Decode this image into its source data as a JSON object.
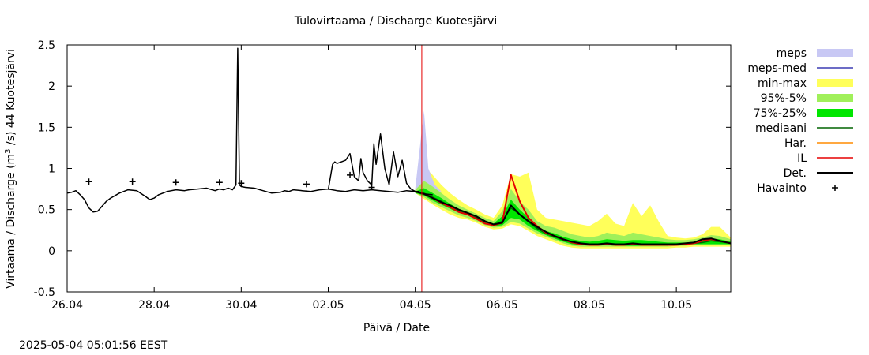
{
  "timestamp": "2025-05-04 05:01:56 EEST",
  "chart_data": {
    "type": "line",
    "title": "Tulovirtaama / Discharge  Kuotesjärvi",
    "xlabel": "Päivä / Date",
    "ylabel_prefix": "Virtaama / Discharge (m",
    "ylabel_sup": "3",
    "ylabel_suffix": " /s)  44 Kuotesjärvi",
    "xlim": [
      0,
      15.25
    ],
    "ylim": [
      -0.5,
      2.5
    ],
    "x_unit": "days since 26.04",
    "yticks": [
      -0.5,
      0,
      0.5,
      1,
      1.5,
      2,
      2.5
    ],
    "ytick_labels": [
      "-0.5",
      "0",
      "0.5",
      "1",
      "1.5",
      "2",
      "2.5"
    ],
    "xticks": [
      0,
      2,
      4,
      6,
      8,
      10,
      12,
      14
    ],
    "xtick_labels": [
      "26.04",
      "28.04",
      "30.04",
      "02.05",
      "04.05",
      "06.05",
      "08.05",
      "10.05"
    ],
    "forecast_start_x": 8.15,
    "legend_position": "right, outside plot",
    "legend": [
      {
        "label": "meps",
        "kind": "box",
        "color": "#c8c8f4"
      },
      {
        "label": "meps-med",
        "kind": "line",
        "color": "#3c3cb4"
      },
      {
        "label": "min-max",
        "kind": "box",
        "color": "#ffff5a"
      },
      {
        "label": "95%-5%",
        "kind": "box",
        "color": "#a0f05a"
      },
      {
        "label": "75%-25%",
        "kind": "box",
        "color": "#00e600"
      },
      {
        "label": "mediaani",
        "kind": "line",
        "color": "#006400"
      },
      {
        "label": "Har.",
        "kind": "line",
        "color": "#ff8c00"
      },
      {
        "label": "IL",
        "kind": "line",
        "color": "#e60000"
      },
      {
        "label": "Det.",
        "kind": "line",
        "color": "#000000"
      },
      {
        "label": "Havainto",
        "kind": "marker",
        "color": "#000000"
      }
    ],
    "series": {
      "observed": {
        "x": [
          0,
          0.1,
          0.2,
          0.3,
          0.4,
          0.5,
          0.6,
          0.7,
          0.8,
          0.9,
          1.0,
          1.2,
          1.4,
          1.6,
          1.8,
          1.9,
          2.0,
          2.1,
          2.2,
          2.3,
          2.5,
          2.7,
          2.8,
          3.0,
          3.2,
          3.4,
          3.5,
          3.6,
          3.7,
          3.8,
          3.88,
          3.92,
          3.96,
          4.0,
          4.1,
          4.3,
          4.5,
          4.7,
          4.9,
          5.0,
          5.1,
          5.2,
          5.4,
          5.6,
          5.8,
          6.0,
          6.2,
          6.4,
          6.6,
          6.8,
          7.0,
          7.2,
          7.4,
          7.6,
          7.8,
          8.0,
          8.1
        ],
        "y": [
          0.7,
          0.71,
          0.73,
          0.68,
          0.62,
          0.52,
          0.47,
          0.48,
          0.54,
          0.6,
          0.64,
          0.7,
          0.74,
          0.73,
          0.66,
          0.62,
          0.64,
          0.68,
          0.7,
          0.72,
          0.74,
          0.73,
          0.74,
          0.75,
          0.76,
          0.73,
          0.75,
          0.74,
          0.76,
          0.74,
          0.8,
          2.46,
          0.8,
          0.78,
          0.77,
          0.76,
          0.73,
          0.7,
          0.71,
          0.73,
          0.72,
          0.74,
          0.73,
          0.72,
          0.74,
          0.75,
          0.73,
          0.72,
          0.74,
          0.73,
          0.74,
          0.73,
          0.72,
          0.71,
          0.73,
          0.72,
          0.72
        ]
      },
      "observed_late": {
        "x": [
          6.0,
          6.1,
          6.15,
          6.2,
          6.3,
          6.4,
          6.5,
          6.6,
          6.7,
          6.75,
          6.8,
          6.9,
          7.0,
          7.05,
          7.1,
          7.2,
          7.3,
          7.4,
          7.5,
          7.55,
          7.6,
          7.7,
          7.8,
          7.9,
          8.0,
          8.1,
          8.2,
          8.4
        ],
        "y": [
          0.74,
          1.05,
          1.08,
          1.06,
          1.08,
          1.1,
          1.18,
          0.9,
          0.85,
          1.12,
          0.95,
          0.85,
          0.8,
          1.3,
          1.05,
          1.42,
          1.0,
          0.8,
          1.2,
          1.05,
          0.9,
          1.1,
          0.82,
          0.75,
          0.72,
          0.7,
          0.69,
          0.68
        ]
      },
      "observations_marker_x": [
        0.5,
        1.5,
        2.5,
        3.5,
        4.0,
        5.5,
        6.5,
        7.0
      ],
      "observations_marker_y": [
        0.84,
        0.84,
        0.83,
        0.83,
        0.82,
        0.81,
        0.92,
        0.77
      ],
      "forecast_x": [
        8.0,
        8.2,
        8.4,
        8.6,
        8.8,
        9.0,
        9.2,
        9.4,
        9.6,
        9.8,
        10.0,
        10.2,
        10.4,
        10.6,
        10.8,
        11.0,
        11.2,
        11.4,
        11.6,
        11.8,
        12.0,
        12.2,
        12.4,
        12.6,
        12.8,
        13.0,
        13.2,
        13.4,
        13.6,
        13.8,
        14.0,
        14.2,
        14.4,
        14.6,
        14.8,
        15.0,
        15.25
      ],
      "min_max_low": [
        0.7,
        0.63,
        0.56,
        0.5,
        0.44,
        0.4,
        0.38,
        0.34,
        0.29,
        0.26,
        0.27,
        0.32,
        0.3,
        0.24,
        0.18,
        0.14,
        0.1,
        0.06,
        0.04,
        0.03,
        0.03,
        0.03,
        0.03,
        0.03,
        0.03,
        0.03,
        0.03,
        0.03,
        0.03,
        0.03,
        0.04,
        0.04,
        0.05,
        0.05,
        0.05,
        0.05,
        0.05
      ],
      "min_max_high": [
        0.76,
        1.02,
        0.92,
        0.8,
        0.7,
        0.62,
        0.55,
        0.5,
        0.44,
        0.4,
        0.55,
        0.93,
        0.9,
        0.95,
        0.5,
        0.4,
        0.38,
        0.36,
        0.34,
        0.32,
        0.3,
        0.36,
        0.45,
        0.33,
        0.3,
        0.58,
        0.42,
        0.55,
        0.35,
        0.18,
        0.16,
        0.15,
        0.16,
        0.2,
        0.29,
        0.29,
        0.16
      ],
      "p95_5_low": [
        0.7,
        0.65,
        0.58,
        0.53,
        0.48,
        0.43,
        0.4,
        0.36,
        0.31,
        0.28,
        0.29,
        0.35,
        0.33,
        0.27,
        0.21,
        0.17,
        0.13,
        0.09,
        0.06,
        0.05,
        0.05,
        0.05,
        0.05,
        0.05,
        0.05,
        0.05,
        0.05,
        0.05,
        0.05,
        0.05,
        0.06,
        0.06,
        0.07,
        0.07,
        0.07,
        0.07,
        0.07
      ],
      "p95_5_high": [
        0.74,
        0.85,
        0.78,
        0.7,
        0.62,
        0.55,
        0.5,
        0.45,
        0.4,
        0.36,
        0.48,
        0.75,
        0.6,
        0.5,
        0.36,
        0.3,
        0.28,
        0.24,
        0.2,
        0.18,
        0.16,
        0.18,
        0.22,
        0.2,
        0.18,
        0.22,
        0.2,
        0.18,
        0.16,
        0.14,
        0.13,
        0.13,
        0.14,
        0.16,
        0.19,
        0.18,
        0.14
      ],
      "p75_25_low": [
        0.7,
        0.67,
        0.61,
        0.56,
        0.51,
        0.46,
        0.43,
        0.38,
        0.33,
        0.3,
        0.31,
        0.4,
        0.38,
        0.3,
        0.24,
        0.19,
        0.15,
        0.11,
        0.08,
        0.07,
        0.07,
        0.07,
        0.07,
        0.06,
        0.06,
        0.06,
        0.06,
        0.06,
        0.06,
        0.06,
        0.07,
        0.07,
        0.08,
        0.08,
        0.08,
        0.08,
        0.08
      ],
      "p75_25_high": [
        0.72,
        0.76,
        0.7,
        0.64,
        0.57,
        0.51,
        0.47,
        0.42,
        0.37,
        0.33,
        0.42,
        0.62,
        0.5,
        0.4,
        0.3,
        0.24,
        0.21,
        0.17,
        0.14,
        0.12,
        0.11,
        0.12,
        0.14,
        0.13,
        0.12,
        0.13,
        0.13,
        0.12,
        0.11,
        0.1,
        0.1,
        0.1,
        0.11,
        0.13,
        0.15,
        0.14,
        0.11
      ],
      "meps_low": [
        0.7,
        0.72,
        0.72,
        0.72,
        0.72
      ],
      "meps_high": [
        0.76,
        1.7,
        1.0,
        0.8,
        0.72
      ],
      "meps_x": [
        8.0,
        8.2,
        8.3,
        8.45,
        8.6
      ],
      "mediaani": [
        0.71,
        0.7,
        0.65,
        0.6,
        0.54,
        0.48,
        0.45,
        0.4,
        0.35,
        0.31,
        0.36,
        0.52,
        0.44,
        0.35,
        0.27,
        0.21,
        0.17,
        0.13,
        0.1,
        0.09,
        0.08,
        0.08,
        0.08,
        0.08,
        0.08,
        0.08,
        0.08,
        0.08,
        0.08,
        0.08,
        0.08,
        0.08,
        0.09,
        0.1,
        0.12,
        0.11,
        0.09
      ],
      "il": [
        0.72,
        0.69,
        0.64,
        0.58,
        0.53,
        0.47,
        0.44,
        0.39,
        0.33,
        0.31,
        0.34,
        0.92,
        0.6,
        0.4,
        0.3,
        0.22,
        0.18,
        0.14,
        0.1,
        0.08,
        0.07,
        0.07,
        0.08,
        0.07,
        0.07,
        0.08,
        0.07,
        0.07,
        0.07,
        0.07,
        0.07,
        0.08,
        0.09,
        0.12,
        0.14,
        0.12,
        0.09
      ],
      "det": [
        0.72,
        0.69,
        0.64,
        0.59,
        0.55,
        0.5,
        0.46,
        0.42,
        0.36,
        0.32,
        0.34,
        0.55,
        0.44,
        0.36,
        0.29,
        0.23,
        0.18,
        0.14,
        0.11,
        0.09,
        0.08,
        0.08,
        0.09,
        0.08,
        0.08,
        0.09,
        0.08,
        0.08,
        0.08,
        0.08,
        0.08,
        0.09,
        0.1,
        0.14,
        0.15,
        0.12,
        0.09
      ]
    }
  }
}
